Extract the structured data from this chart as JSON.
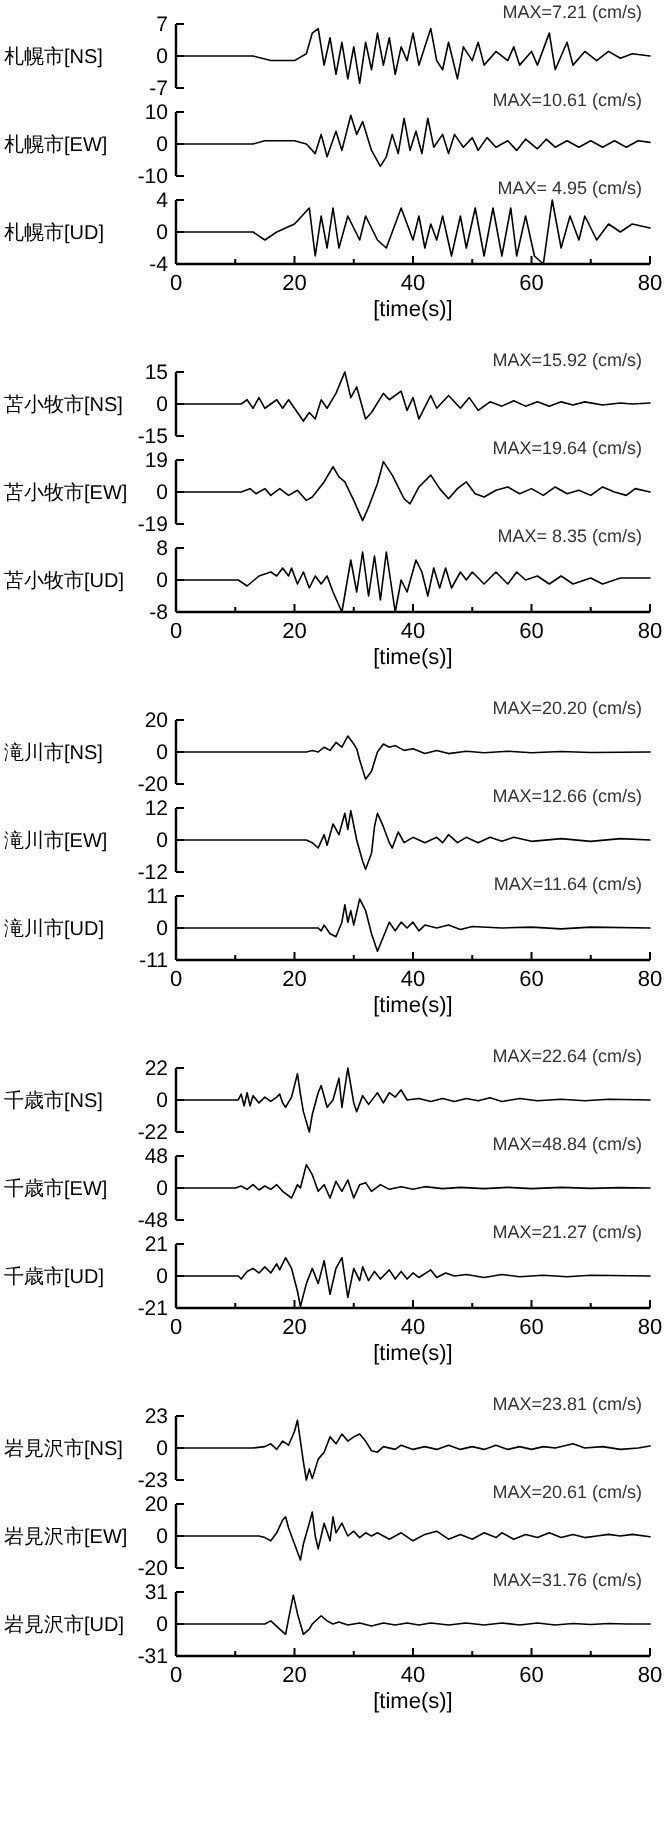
{
  "chart_data": [
    {
      "type": "line",
      "ylabel": "札幌市[NS]",
      "annotations": [
        "MAX=7.21 (cm/s)"
      ],
      "color": "#000000",
      "xlim": [
        0,
        80
      ],
      "ylim": [
        -7,
        7
      ],
      "yticks": [
        -7,
        0,
        7
      ],
      "tick_labels": "y",
      "x": [
        0,
        13,
        16,
        20,
        22,
        23,
        24,
        25,
        26,
        27,
        28,
        29,
        30,
        31,
        32,
        33,
        34,
        35,
        36,
        37,
        38,
        39,
        40,
        41,
        42,
        43,
        44,
        45,
        46,
        47.5,
        48.5,
        50,
        51,
        52,
        54,
        56,
        57,
        58,
        60,
        61,
        63,
        64,
        66,
        67,
        69,
        71,
        73,
        75,
        77,
        80
      ],
      "values": [
        0,
        0,
        -1,
        -1,
        0.5,
        5,
        6,
        -2,
        4,
        -4,
        3,
        -5,
        2,
        -6,
        3,
        -3,
        5,
        -2,
        4,
        -4,
        2,
        -1,
        5,
        -2,
        2,
        6,
        -1,
        -3,
        3,
        -5,
        2,
        -1,
        3,
        -2,
        1,
        -1,
        2,
        -2,
        1,
        -2,
        5,
        -3,
        3,
        -2,
        1,
        -1,
        1,
        -0.5,
        0.5,
        0
      ]
    },
    {
      "type": "line",
      "ylabel": "札幌市[EW]",
      "annotations": [
        "MAX=10.61 (cm/s)"
      ],
      "color": "#000000",
      "xlim": [
        0,
        80
      ],
      "ylim": [
        -10,
        10
      ],
      "yticks": [
        -10,
        0,
        10
      ],
      "tick_labels": "y",
      "x": [
        0,
        13,
        15,
        20,
        22,
        23.5,
        24.5,
        25.5,
        27,
        28,
        29.5,
        30.5,
        31.5,
        33,
        34.5,
        35.5,
        36.5,
        37.5,
        38.5,
        39.5,
        40.5,
        41.5,
        42.5,
        43.5,
        45,
        46,
        47,
        48.5,
        50,
        51,
        52.5,
        54,
        56,
        57.5,
        59,
        61,
        62.5,
        64,
        66,
        68,
        70,
        72,
        74,
        76,
        78,
        80
      ],
      "values": [
        0,
        0,
        1,
        1,
        0,
        -3,
        3,
        -4,
        4,
        -2,
        9,
        3,
        7,
        -2,
        -7,
        -4,
        3,
        -3,
        8,
        -2,
        4,
        -3,
        8,
        -1,
        3,
        -3,
        3,
        -1,
        2,
        -2,
        2,
        -1,
        1,
        -2,
        1.5,
        -1.5,
        1.5,
        -1,
        1,
        -1,
        1,
        -1,
        1,
        -1,
        1,
        0.5
      ]
    },
    {
      "type": "line",
      "ylabel": "札幌市[UD]",
      "annotations": [
        "MAX= 4.95 (cm/s)"
      ],
      "color": "#000000",
      "xlim": [
        0,
        80
      ],
      "ylim": [
        -4,
        4
      ],
      "yticks": [
        -4,
        0,
        4
      ],
      "xlabel": "[time(s)]",
      "xticks": [
        0,
        {
          "value": 10,
          "label": null
        },
        20,
        {
          "value": 30,
          "label": null
        },
        40,
        {
          "value": 50,
          "label": null
        },
        60,
        {
          "value": 70,
          "label": null
        },
        80
      ],
      "x": [
        0,
        13,
        15,
        17,
        20,
        22.5,
        23.5,
        24.5,
        25.5,
        26.5,
        27.5,
        29,
        31,
        32,
        34,
        35.5,
        36.5,
        38,
        40,
        41,
        42,
        43,
        44,
        45,
        46.5,
        48,
        49,
        50.5,
        52,
        53.5,
        55,
        56.5,
        57.5,
        59,
        60.5,
        62,
        63.5,
        65,
        66.5,
        68,
        69,
        71,
        73,
        75,
        77,
        80
      ],
      "values": [
        0,
        0,
        -1,
        0,
        1,
        3,
        -3,
        2,
        -2,
        3,
        -2,
        2,
        -1,
        2,
        -1,
        -2,
        0,
        3,
        -1,
        2,
        -2,
        1,
        -1,
        2,
        -3,
        2,
        -2,
        3,
        -3,
        3,
        -3,
        3,
        -3,
        2,
        -3,
        -4,
        4,
        -2,
        2,
        -1,
        2,
        -1,
        1,
        0,
        1,
        0.5
      ]
    },
    {
      "type": "line",
      "ylabel": "苫小牧市[NS]",
      "annotations": [
        "MAX=15.92 (cm/s)"
      ],
      "color": "#000000",
      "xlim": [
        0,
        80
      ],
      "ylim": [
        -15,
        15
      ],
      "yticks": [
        -15,
        0,
        15
      ],
      "tick_labels": "y",
      "x": [
        0,
        11,
        12,
        13,
        14,
        15,
        17,
        18,
        19,
        20,
        21.5,
        22.5,
        23.5,
        24.5,
        25.5,
        27,
        28.5,
        29.5,
        30.5,
        32,
        33,
        35,
        36,
        38,
        39,
        40,
        41,
        43,
        44,
        46,
        48,
        49.5,
        51,
        53,
        55,
        57,
        59,
        61,
        63,
        65,
        67,
        69,
        72,
        75,
        77,
        80
      ],
      "values": [
        0,
        0,
        2,
        -2,
        3,
        -2,
        2,
        -2,
        2,
        -2,
        -8,
        -4,
        -7,
        2,
        -2,
        5,
        15,
        3,
        8,
        -7,
        -4,
        5,
        2,
        6,
        -3,
        3,
        -7,
        4,
        -2,
        4,
        -2,
        3,
        -3,
        1,
        -1,
        1.5,
        -1,
        1,
        -1,
        1,
        -0.5,
        1,
        -0.5,
        0.5,
        0,
        0.5
      ]
    },
    {
      "type": "line",
      "ylabel": "苫小牧市[EW]",
      "annotations": [
        "MAX=19.64 (cm/s)"
      ],
      "color": "#000000",
      "xlim": [
        0,
        80
      ],
      "ylim": [
        -19,
        19
      ],
      "yticks": [
        -19,
        0,
        19
      ],
      "tick_labels": "y",
      "x": [
        0,
        11,
        12.5,
        13.5,
        15,
        16,
        17.5,
        19,
        20.5,
        22,
        23,
        25,
        26.5,
        27.5,
        28.5,
        30,
        31.5,
        32.5,
        34,
        35,
        36.5,
        38.5,
        39.5,
        41,
        43,
        44.5,
        46,
        47.5,
        49,
        50.5,
        52,
        54,
        56,
        58,
        60,
        62,
        64,
        66,
        68,
        70,
        72,
        74,
        76,
        77.5,
        80
      ],
      "values": [
        0,
        0,
        2,
        -1,
        2,
        -2,
        2,
        -2,
        1,
        -5,
        -3,
        6,
        15,
        9,
        6,
        -5,
        -17,
        -9,
        5,
        18,
        10,
        -4,
        -7,
        3,
        10,
        2,
        -4,
        2,
        6,
        -1,
        -3,
        1,
        3,
        -1,
        2,
        -2,
        3,
        -1,
        1,
        -2,
        3,
        0,
        -2,
        2,
        0
      ]
    },
    {
      "type": "line",
      "ylabel": "苫小牧市[UD]",
      "annotations": [
        "MAX= 8.35 (cm/s)"
      ],
      "color": "#000000",
      "xlim": [
        0,
        80
      ],
      "ylim": [
        -8,
        8
      ],
      "yticks": [
        -8,
        0,
        8
      ],
      "xlabel": "[time(s)]",
      "xticks": [
        0,
        {
          "value": 10,
          "label": null
        },
        20,
        {
          "value": 30,
          "label": null
        },
        40,
        {
          "value": 50,
          "label": null
        },
        60,
        {
          "value": 70,
          "label": null
        },
        80
      ],
      "x": [
        0,
        10.5,
        12,
        14,
        16,
        17,
        18,
        19,
        19.5,
        20.5,
        21.5,
        22.5,
        23.5,
        24.5,
        25.5,
        26.5,
        28,
        29.5,
        30.5,
        31.5,
        32.5,
        33.5,
        34.5,
        35.5,
        37,
        38,
        39,
        40.5,
        41.5,
        42.5,
        43.5,
        44.5,
        45.5,
        46.5,
        48,
        49,
        50,
        52,
        54,
        56,
        57.5,
        59,
        61,
        63,
        65,
        67,
        70,
        72,
        75,
        80
      ],
      "values": [
        0,
        0,
        -1.5,
        1,
        2,
        1,
        3,
        1,
        3,
        -1,
        2,
        -2,
        1,
        -1,
        1,
        -3,
        -8,
        5,
        -3,
        7,
        -4,
        6,
        -5,
        7,
        -8,
        0,
        -3,
        5,
        2,
        -4,
        3,
        -2,
        3,
        -2,
        2,
        0,
        2,
        -1,
        2,
        -1,
        2,
        0,
        1,
        -1,
        1,
        -1,
        0.5,
        -1,
        0.5,
        0.5
      ]
    },
    {
      "type": "line",
      "ylabel": "滝川市[NS]",
      "annotations": [
        "MAX=20.20 (cm/s)"
      ],
      "color": "#000000",
      "xlim": [
        0,
        80
      ],
      "ylim": [
        -20,
        20
      ],
      "yticks": [
        -20,
        0,
        20
      ],
      "tick_labels": "y",
      "x": [
        0,
        22,
        23,
        24,
        25,
        26,
        27,
        28,
        29,
        30,
        30.5,
        31,
        32,
        33,
        34,
        35,
        36,
        37,
        38.5,
        40,
        42,
        44,
        46,
        49,
        52,
        56,
        60,
        65,
        70,
        80
      ],
      "values": [
        0,
        0,
        1,
        0,
        3,
        1,
        6,
        3,
        10,
        5,
        2,
        -5,
        -17,
        -12,
        0,
        5,
        3,
        4,
        1,
        2,
        -1,
        1,
        -1,
        0.5,
        -0.5,
        0.5,
        -0.5,
        0.3,
        -0.3,
        0
      ]
    },
    {
      "type": "line",
      "ylabel": "滝川市[EW]",
      "annotations": [
        "MAX=12.66 (cm/s)"
      ],
      "color": "#000000",
      "xlim": [
        0,
        80
      ],
      "ylim": [
        -12,
        12
      ],
      "yticks": [
        -12,
        0,
        12
      ],
      "tick_labels": "y",
      "x": [
        0,
        22,
        23,
        24,
        25,
        25.5,
        26.5,
        27.5,
        28.5,
        29,
        29.5,
        30.5,
        31.5,
        32,
        33,
        33.5,
        34,
        35,
        36,
        36.5,
        37.5,
        38.5,
        40,
        42,
        44,
        45,
        46,
        47.5,
        49,
        51,
        53,
        55,
        57,
        60,
        65,
        70,
        75,
        80
      ],
      "values": [
        0,
        0,
        -1,
        -3,
        2,
        -2,
        6,
        2,
        10,
        4,
        11,
        0,
        -8,
        -11,
        -5,
        5,
        10,
        5,
        -1,
        -3,
        3,
        -1,
        1,
        -1,
        1,
        -1,
        2,
        -1,
        1,
        -1,
        1,
        -0.5,
        1,
        -0.5,
        0.5,
        -0.5,
        0.5,
        0
      ]
    },
    {
      "type": "line",
      "ylabel": "滝川市[UD]",
      "annotations": [
        "MAX=11.64 (cm/s)"
      ],
      "color": "#000000",
      "xlim": [
        0,
        80
      ],
      "ylim": [
        -11,
        11
      ],
      "yticks": [
        -11,
        0,
        11
      ],
      "xlabel": "[time(s)]",
      "xticks": [
        0,
        {
          "value": 10,
          "label": null
        },
        20,
        {
          "value": 30,
          "label": null
        },
        40,
        {
          "value": 50,
          "label": null
        },
        60,
        {
          "value": 70,
          "label": null
        },
        80
      ],
      "x": [
        0,
        24,
        24.5,
        25,
        26,
        27,
        28,
        28.5,
        29,
        29.5,
        30,
        31,
        32,
        33,
        34,
        35,
        36,
        37,
        38,
        39,
        40,
        41,
        42,
        44,
        46,
        48,
        50,
        55,
        60,
        65,
        70,
        80
      ],
      "values": [
        0,
        0,
        -1,
        1,
        -2,
        -3,
        2,
        8,
        2,
        6,
        1,
        10,
        6,
        -2,
        -8,
        -3,
        2,
        -1,
        2,
        0,
        2,
        -1,
        1,
        0,
        1,
        -0.5,
        0.5,
        0,
        0.3,
        -0.3,
        0.3,
        0
      ]
    },
    {
      "type": "line",
      "ylabel": "千歳市[NS]",
      "annotations": [
        "MAX=22.64 (cm/s)"
      ],
      "color": "#000000",
      "xlim": [
        0,
        80
      ],
      "ylim": [
        -22,
        22
      ],
      "yticks": [
        -22,
        0,
        22
      ],
      "tick_labels": "y",
      "x": [
        0,
        10.5,
        11,
        11.5,
        12,
        12.5,
        13,
        14,
        15,
        16,
        17,
        17.5,
        18,
        18.5,
        19.5,
        20.5,
        21,
        21.5,
        22.5,
        23,
        24,
        24.5,
        25.5,
        26.5,
        27.5,
        28,
        29,
        30,
        30.5,
        31.5,
        32.5,
        34,
        35,
        36,
        37,
        38,
        39,
        41,
        43,
        45,
        47,
        49,
        51,
        53,
        55,
        58,
        61,
        65,
        69,
        73,
        80
      ],
      "values": [
        0,
        0,
        4,
        -4,
        5,
        -4,
        3,
        -2,
        2,
        -1,
        2,
        4,
        -2,
        -5,
        2,
        18,
        4,
        -8,
        -22,
        -10,
        5,
        10,
        -5,
        0,
        15,
        -5,
        22,
        -2,
        -8,
        3,
        -3,
        5,
        -2,
        5,
        2,
        7,
        0,
        1,
        -1,
        1,
        -1,
        1,
        -0.5,
        1.5,
        -1,
        1,
        -0.5,
        0.5,
        -0.5,
        0.5,
        0
      ]
    },
    {
      "type": "line",
      "ylabel": "千歳市[EW]",
      "annotations": [
        "MAX=48.84 (cm/s)"
      ],
      "color": "#000000",
      "xlim": [
        0,
        80
      ],
      "ylim": [
        -48,
        48
      ],
      "yticks": [
        -48,
        0,
        48
      ],
      "tick_labels": "y",
      "x": [
        0,
        10,
        11,
        12,
        13,
        14,
        15,
        16,
        17,
        18,
        19.5,
        20.5,
        21,
        22,
        23,
        24,
        25,
        26,
        27,
        28,
        29,
        30,
        31,
        32,
        33,
        34.5,
        36,
        38,
        40,
        42,
        45,
        48,
        52,
        56,
        60,
        65,
        70,
        75,
        80
      ],
      "values": [
        0,
        0,
        3,
        -2,
        5,
        -3,
        3,
        -2,
        5,
        -5,
        -15,
        5,
        0,
        35,
        20,
        -5,
        5,
        -15,
        10,
        -5,
        12,
        -15,
        5,
        8,
        -5,
        5,
        -2,
        2,
        -2,
        2,
        -1,
        1,
        -1,
        1,
        -1,
        1,
        -0.5,
        0.5,
        0
      ]
    },
    {
      "type": "line",
      "ylabel": "千歳市[UD]",
      "annotations": [
        "MAX=21.27 (cm/s)"
      ],
      "color": "#000000",
      "xlim": [
        0,
        80
      ],
      "ylim": [
        -21,
        21
      ],
      "yticks": [
        -21,
        0,
        21
      ],
      "xlabel": "[time(s)]",
      "xticks": [
        0,
        {
          "value": 10,
          "label": null
        },
        20,
        {
          "value": 30,
          "label": null
        },
        40,
        {
          "value": 50,
          "label": null
        },
        60,
        {
          "value": 70,
          "label": null
        },
        80
      ],
      "x": [
        0,
        10.5,
        11,
        12,
        13,
        14,
        15,
        16,
        17,
        17.5,
        18.5,
        19.5,
        20.5,
        21,
        22,
        23,
        24,
        25,
        26,
        27,
        28,
        29,
        30,
        31,
        31.5,
        32.5,
        33.5,
        34.5,
        36,
        37,
        38,
        39,
        40,
        41,
        43,
        44,
        45.5,
        47,
        49,
        52,
        55,
        58,
        62,
        66,
        70,
        80
      ],
      "values": [
        0,
        0,
        -2,
        3,
        5,
        2,
        6,
        2,
        8,
        4,
        12,
        5,
        -10,
        -20,
        -5,
        5,
        -5,
        10,
        -12,
        5,
        12,
        -14,
        5,
        -3,
        6,
        -3,
        3,
        -2,
        4,
        -2,
        3,
        -2,
        2,
        -1,
        4,
        -1,
        2,
        0,
        1,
        -1,
        1,
        -0.5,
        0.5,
        -0.5,
        0.5,
        0
      ]
    },
    {
      "type": "line",
      "ylabel": "岩見沢市[NS]",
      "annotations": [
        "MAX=23.81 (cm/s)"
      ],
      "color": "#000000",
      "xlim": [
        0,
        80
      ],
      "ylim": [
        -23,
        23
      ],
      "yticks": [
        -23,
        0,
        23
      ],
      "tick_labels": "y",
      "x": [
        0,
        13,
        15,
        16,
        17,
        18,
        19,
        20,
        20.5,
        21,
        21.5,
        22,
        22.5,
        23,
        24,
        25,
        26,
        27,
        28,
        29,
        30,
        31,
        32,
        33,
        34,
        35,
        37,
        38,
        40,
        42,
        44,
        46,
        48,
        50,
        52,
        54,
        56,
        58,
        60,
        62,
        64,
        67,
        69,
        72,
        75,
        78,
        80
      ],
      "values": [
        0,
        0,
        1,
        3,
        -1,
        5,
        2,
        12,
        20,
        5,
        -10,
        -23,
        -15,
        -22,
        -8,
        -3,
        8,
        3,
        10,
        5,
        8,
        10,
        5,
        -2,
        -3,
        1,
        -1,
        2,
        -1,
        1,
        -1,
        2,
        -1,
        1,
        -1,
        2,
        -1,
        1,
        -1,
        1,
        0,
        3,
        0,
        1,
        -1,
        0,
        1.5
      ]
    },
    {
      "type": "line",
      "ylabel": "岩見沢市[EW]",
      "annotations": [
        "MAX=20.61 (cm/s)"
      ],
      "color": "#000000",
      "xlim": [
        0,
        80
      ],
      "ylim": [
        -20,
        20
      ],
      "yticks": [
        -20,
        0,
        20
      ],
      "tick_labels": "y",
      "x": [
        0,
        14,
        15,
        16,
        17,
        18,
        18.5,
        19,
        20,
        21,
        21.5,
        22.5,
        23,
        23.5,
        24,
        25,
        26,
        26.5,
        27,
        28,
        29,
        30,
        31,
        32,
        33,
        34,
        36,
        38,
        40,
        42,
        44,
        46,
        48,
        50,
        52,
        54,
        55,
        57,
        59,
        61,
        63,
        65,
        67,
        69,
        71,
        73,
        75,
        77,
        80
      ],
      "values": [
        0,
        0,
        -1,
        -3,
        2,
        10,
        12,
        5,
        -5,
        -15,
        -5,
        8,
        15,
        0,
        -8,
        8,
        -3,
        12,
        2,
        8,
        0,
        3,
        -1,
        2,
        0,
        2,
        -2,
        2,
        -3,
        1,
        3,
        -2,
        1,
        -2,
        2,
        -1,
        2,
        -2,
        1,
        -1,
        2,
        -1,
        1,
        -1,
        0,
        1,
        0,
        1,
        -0.5
      ]
    },
    {
      "type": "line",
      "ylabel": "岩見沢市[UD]",
      "annotations": [
        "MAX=31.76 (cm/s)"
      ],
      "color": "#000000",
      "xlim": [
        0,
        80
      ],
      "ylim": [
        -31,
        31
      ],
      "yticks": [
        -31,
        0,
        31
      ],
      "xlabel": "[time(s)]",
      "xticks": [
        0,
        {
          "value": 10,
          "label": null
        },
        20,
        {
          "value": 30,
          "label": null
        },
        40,
        {
          "value": 50,
          "label": null
        },
        60,
        {
          "value": 70,
          "label": null
        },
        80
      ],
      "x": [
        0,
        15,
        16,
        17.5,
        18.5,
        19,
        19.8,
        20.5,
        21.5,
        22.5,
        23,
        24.5,
        25.5,
        26.5,
        27.5,
        29,
        31,
        33,
        35,
        37,
        39,
        41,
        43,
        46,
        49,
        52,
        55,
        58,
        61,
        64,
        67,
        70,
        73,
        76,
        80
      ],
      "values": [
        0,
        0,
        3,
        -5,
        -10,
        5,
        28,
        10,
        -10,
        -5,
        0,
        8,
        3,
        0,
        2,
        -1,
        1,
        -2,
        1,
        -1,
        1,
        -1,
        1,
        -1,
        1,
        -1,
        1,
        -1,
        1,
        -1,
        0.5,
        -0.5,
        0.5,
        0,
        0
      ]
    }
  ]
}
